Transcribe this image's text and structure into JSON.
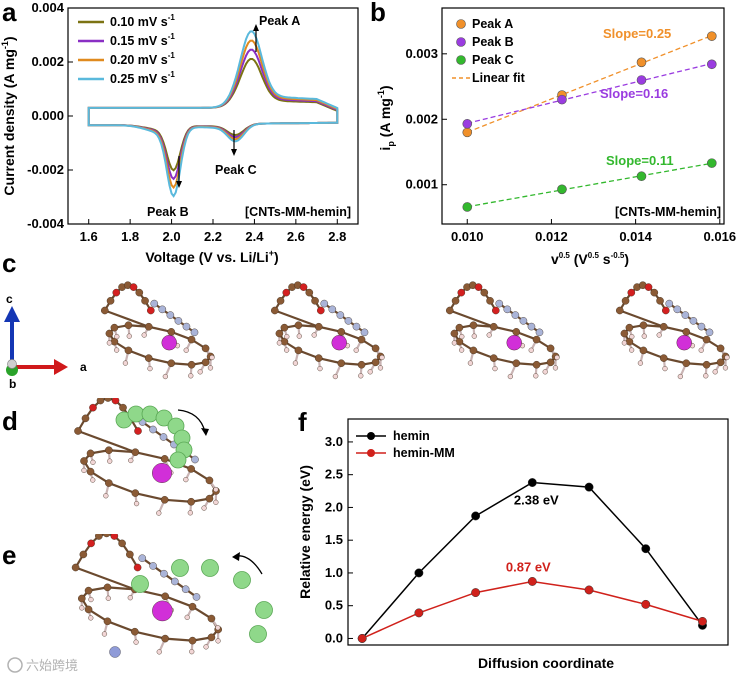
{
  "panels": {
    "a": {
      "label": "a"
    },
    "b": {
      "label": "b"
    },
    "c": {
      "label": "c"
    },
    "d": {
      "label": "d"
    },
    "e": {
      "label": "e"
    },
    "f": {
      "label": "f"
    }
  },
  "axes_c": {
    "c": "c",
    "a": "a",
    "b": "b"
  },
  "watermark": "六始跨境",
  "chart_data": [
    {
      "id": "cv",
      "type": "line",
      "xlabel": "Voltage (V vs. Li/Li",
      "xlabel_sup": "+",
      "xlabel_end": ")",
      "ylabel": "Current density (A mg",
      "ylabel_sup": "-1",
      "ylabel_end": ")",
      "xlim": [
        1.5,
        2.9
      ],
      "ylim": [
        -0.004,
        0.004
      ],
      "xticks": [
        "1.6",
        "1.8",
        "2.0",
        "2.2",
        "2.4",
        "2.6",
        "2.8"
      ],
      "yticks": [
        "-0.004",
        "-0.002",
        "0.000",
        "0.002",
        "0.004"
      ],
      "tag": "[CNTs-MM-hemin]",
      "annotations": [
        "Peak A",
        "Peak B",
        "Peak C"
      ],
      "series": [
        {
          "name": "0.10 mV s",
          "unit_sup": "-1",
          "color": "#7c7313",
          "scale": 0.64
        },
        {
          "name": "0.15 mV s",
          "unit_sup": "-1",
          "color": "#8a2fc4",
          "scale": 0.76
        },
        {
          "name": "0.20 mV s",
          "unit_sup": "-1",
          "color": "#e08a1e",
          "scale": 0.88
        },
        {
          "name": "0.25 mV s",
          "unit_sup": "-1",
          "color": "#5ab9dc",
          "scale": 1.0
        }
      ],
      "peak_current_max": {
        "A": 0.0029,
        "B": -0.0026,
        "C": -0.00075
      }
    },
    {
      "id": "ipfit",
      "type": "scatter",
      "xlabel": "v",
      "xlabel_sup1": "0.5",
      "xlabel_mid": " (V",
      "xlabel_sup2": "0.5",
      "xlabel_mid2": " s",
      "xlabel_sup3": "-0.5",
      "xlabel_end": ")",
      "ylabel": "i",
      "ylabel_sub": "p",
      "ylabel_end": " (A mg",
      "ylabel_sup": "-1",
      "ylabel_end2": ")",
      "xlim": [
        0.0094,
        0.0161
      ],
      "ylim": [
        0.0004,
        0.0037
      ],
      "xticks": [
        "0.010",
        "0.012",
        "0.014",
        "0.016"
      ],
      "yticks": [
        "0.001",
        "0.002",
        "0.003"
      ],
      "tag": "[CNTs-MM-hemin]",
      "fit_label": "Linear fit",
      "x": [
        0.01,
        0.01225,
        0.01414,
        0.01581
      ],
      "series": [
        {
          "name": "Peak A",
          "color": "#f0902a",
          "values": [
            0.0018,
            0.00237,
            0.00287,
            0.00327
          ],
          "slope_label": "Slope=0.25"
        },
        {
          "name": "Peak B",
          "color": "#9a3ce0",
          "values": [
            0.00193,
            0.0023,
            0.0026,
            0.00284
          ],
          "slope_label": "Slope=0.16"
        },
        {
          "name": "Peak C",
          "color": "#33b82e",
          "values": [
            0.00066,
            0.00093,
            0.00113,
            0.00133
          ],
          "slope_label": "Slope=0.11"
        }
      ]
    },
    {
      "id": "energy",
      "type": "line",
      "xlabel": "Diffusion coordinate",
      "ylabel": "Relative energy (eV)",
      "ylim": [
        -0.1,
        3.35
      ],
      "yticks": [
        "0.0",
        "0.5",
        "1.0",
        "1.5",
        "2.0",
        "2.5",
        "3.0"
      ],
      "x": [
        0,
        1,
        2,
        3,
        4,
        5,
        6
      ],
      "series": [
        {
          "name": "hemin",
          "color": "#000000",
          "values": [
            0.0,
            1.0,
            1.87,
            2.38,
            2.31,
            1.37,
            0.2
          ],
          "annotation": "2.38 eV"
        },
        {
          "name": "hemin-MM",
          "color": "#d0211b",
          "values": [
            0.0,
            0.39,
            0.7,
            0.87,
            0.74,
            0.52,
            0.26
          ],
          "annotation": "0.87 eV"
        }
      ]
    }
  ]
}
